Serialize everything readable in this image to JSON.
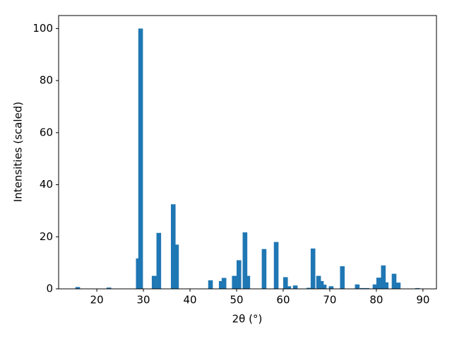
{
  "chart_data": {
    "type": "bar",
    "xlabel": "2θ (°)",
    "ylabel": "Intensities (scaled)",
    "color": "#1f77b4",
    "x": [
      15.9,
      22.6,
      28.9,
      29.4,
      32.3,
      33.3,
      36.4,
      37.1,
      44.4,
      46.7,
      47.3,
      49.5,
      50.5,
      51.8,
      52.4,
      55.9,
      58.5,
      60.5,
      61.2,
      62.6,
      65.5,
      66.4,
      67.6,
      68.2,
      68.8,
      70.3,
      72.7,
      75.9,
      77.0,
      78.0,
      79.7,
      80.5,
      81.5,
      82.1,
      83.8,
      84.7,
      88.8
    ],
    "values": [
      0.7,
      0.5,
      11.7,
      100,
      5,
      21.5,
      32.5,
      17,
      3.3,
      3,
      4.2,
      5,
      11,
      21.7,
      5,
      15.3,
      18,
      4.5,
      1,
      1.3,
      0.4,
      15.5,
      5,
      3,
      1.6,
      1,
      8.7,
      1.7,
      0.3,
      0.3,
      1.7,
      4.3,
      9,
      2.5,
      5.8,
      2.4,
      0.3
    ],
    "bar_width": 1,
    "xlim": [
      11.8,
      92.9
    ],
    "xticks": [
      20,
      30,
      40,
      50,
      60,
      70,
      80,
      90
    ],
    "ylim": [
      0,
      105
    ],
    "yticks": [
      0,
      20,
      40,
      60,
      80,
      100
    ]
  }
}
